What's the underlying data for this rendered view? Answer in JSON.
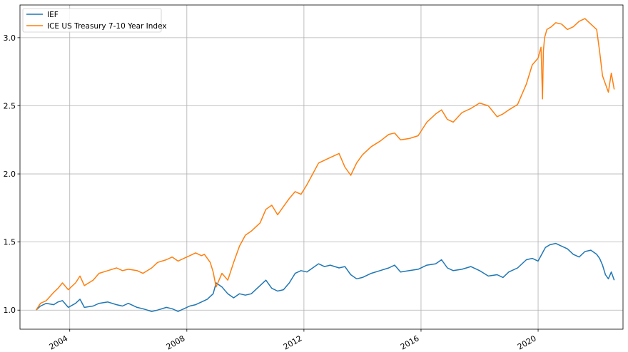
{
  "chart_data": {
    "type": "line",
    "title": "",
    "xlabel": "",
    "ylabel": "",
    "xlim": [
      2002.3,
      2022.9
    ],
    "ylim": [
      0.86,
      3.24
    ],
    "grid": true,
    "legend_placement": "top-left",
    "x_ticks": [
      {
        "value": 2004,
        "label": "2004"
      },
      {
        "value": 2008,
        "label": "2008"
      },
      {
        "value": 2012,
        "label": "2012"
      },
      {
        "value": 2016,
        "label": "2016"
      },
      {
        "value": 2020,
        "label": "2020"
      }
    ],
    "y_ticks": [
      {
        "value": 1.0,
        "label": "1.0"
      },
      {
        "value": 1.5,
        "label": "1.5"
      },
      {
        "value": 2.0,
        "label": "2.0"
      },
      {
        "value": 2.5,
        "label": "2.5"
      },
      {
        "value": 3.0,
        "label": "3.0"
      }
    ],
    "series": [
      {
        "name": "IEF",
        "color": "#1f77b4",
        "x": [
          2002.85,
          2003.0,
          2003.2,
          2003.45,
          2003.6,
          2003.75,
          2003.95,
          2004.2,
          2004.35,
          2004.5,
          2004.8,
          2005.0,
          2005.3,
          2005.6,
          2005.8,
          2006.0,
          2006.3,
          2006.5,
          2006.8,
          2007.0,
          2007.3,
          2007.5,
          2007.7,
          2007.9,
          2008.1,
          2008.3,
          2008.5,
          2008.7,
          2008.8,
          2008.9,
          2009.0,
          2009.2,
          2009.4,
          2009.6,
          2009.8,
          2010.0,
          2010.2,
          2010.5,
          2010.7,
          2010.9,
          2011.1,
          2011.3,
          2011.5,
          2011.7,
          2011.9,
          2012.1,
          2012.3,
          2012.5,
          2012.7,
          2012.9,
          2013.2,
          2013.4,
          2013.6,
          2013.8,
          2014.0,
          2014.3,
          2014.6,
          2014.9,
          2015.1,
          2015.3,
          2015.6,
          2015.9,
          2016.2,
          2016.5,
          2016.7,
          2016.9,
          2017.1,
          2017.4,
          2017.7,
          2018.0,
          2018.3,
          2018.6,
          2018.8,
          2019.0,
          2019.3,
          2019.6,
          2019.8,
          2020.0,
          2020.15,
          2020.25,
          2020.4,
          2020.6,
          2020.8,
          2021.0,
          2021.2,
          2021.4,
          2021.6,
          2021.8,
          2022.0,
          2022.1,
          2022.2,
          2022.3,
          2022.4,
          2022.5,
          2022.6
        ],
        "y": [
          1.0,
          1.03,
          1.05,
          1.04,
          1.06,
          1.07,
          1.02,
          1.05,
          1.08,
          1.02,
          1.03,
          1.05,
          1.06,
          1.04,
          1.03,
          1.05,
          1.02,
          1.01,
          0.99,
          1.0,
          1.02,
          1.01,
          0.99,
          1.01,
          1.03,
          1.04,
          1.06,
          1.08,
          1.1,
          1.12,
          1.2,
          1.17,
          1.12,
          1.09,
          1.12,
          1.11,
          1.12,
          1.18,
          1.22,
          1.16,
          1.14,
          1.15,
          1.2,
          1.27,
          1.29,
          1.28,
          1.31,
          1.34,
          1.32,
          1.33,
          1.31,
          1.32,
          1.26,
          1.23,
          1.24,
          1.27,
          1.29,
          1.31,
          1.33,
          1.28,
          1.29,
          1.3,
          1.33,
          1.34,
          1.37,
          1.31,
          1.29,
          1.3,
          1.32,
          1.29,
          1.25,
          1.26,
          1.24,
          1.28,
          1.31,
          1.37,
          1.38,
          1.36,
          1.42,
          1.46,
          1.48,
          1.49,
          1.47,
          1.45,
          1.41,
          1.39,
          1.43,
          1.44,
          1.41,
          1.38,
          1.33,
          1.26,
          1.23,
          1.28,
          1.22
        ]
      },
      {
        "name": "ICE US Treasury 7-10 Year Index",
        "color": "#ff7f0e",
        "x": [
          2002.85,
          2003.0,
          2003.2,
          2003.45,
          2003.6,
          2003.75,
          2003.95,
          2004.2,
          2004.35,
          2004.5,
          2004.8,
          2005.0,
          2005.3,
          2005.6,
          2005.8,
          2006.0,
          2006.3,
          2006.5,
          2006.8,
          2007.0,
          2007.3,
          2007.5,
          2007.7,
          2007.9,
          2008.1,
          2008.3,
          2008.5,
          2008.6,
          2008.7,
          2008.8,
          2008.9,
          2009.0,
          2009.2,
          2009.4,
          2009.6,
          2009.8,
          2010.0,
          2010.2,
          2010.5,
          2010.7,
          2010.9,
          2011.1,
          2011.3,
          2011.5,
          2011.7,
          2011.9,
          2012.1,
          2012.3,
          2012.5,
          2012.7,
          2012.9,
          2013.2,
          2013.4,
          2013.6,
          2013.8,
          2014.0,
          2014.3,
          2014.6,
          2014.9,
          2015.1,
          2015.3,
          2015.6,
          2015.9,
          2016.2,
          2016.5,
          2016.7,
          2016.9,
          2017.1,
          2017.4,
          2017.7,
          2018.0,
          2018.3,
          2018.6,
          2018.8,
          2019.0,
          2019.3,
          2019.6,
          2019.8,
          2020.0,
          2020.1,
          2020.15,
          2020.18,
          2020.22,
          2020.3,
          2020.45,
          2020.6,
          2020.8,
          2021.0,
          2021.2,
          2021.4,
          2021.6,
          2021.8,
          2022.0,
          2022.1,
          2022.2,
          2022.3,
          2022.4,
          2022.5,
          2022.6
        ],
        "y": [
          1.0,
          1.05,
          1.07,
          1.13,
          1.16,
          1.2,
          1.15,
          1.2,
          1.25,
          1.18,
          1.22,
          1.27,
          1.29,
          1.31,
          1.29,
          1.3,
          1.29,
          1.27,
          1.31,
          1.35,
          1.37,
          1.39,
          1.36,
          1.38,
          1.4,
          1.42,
          1.4,
          1.41,
          1.38,
          1.35,
          1.28,
          1.17,
          1.27,
          1.22,
          1.35,
          1.47,
          1.55,
          1.58,
          1.64,
          1.74,
          1.77,
          1.7,
          1.76,
          1.82,
          1.87,
          1.85,
          1.92,
          2.0,
          2.08,
          2.1,
          2.12,
          2.15,
          2.05,
          1.99,
          2.08,
          2.14,
          2.2,
          2.24,
          2.29,
          2.3,
          2.25,
          2.26,
          2.28,
          2.38,
          2.44,
          2.47,
          2.4,
          2.38,
          2.45,
          2.48,
          2.52,
          2.5,
          2.42,
          2.44,
          2.47,
          2.51,
          2.66,
          2.8,
          2.85,
          2.93,
          2.55,
          2.9,
          3.0,
          3.06,
          3.08,
          3.11,
          3.1,
          3.06,
          3.08,
          3.12,
          3.14,
          3.1,
          3.06,
          2.9,
          2.72,
          2.66,
          2.6,
          2.74,
          2.62
        ]
      }
    ]
  }
}
